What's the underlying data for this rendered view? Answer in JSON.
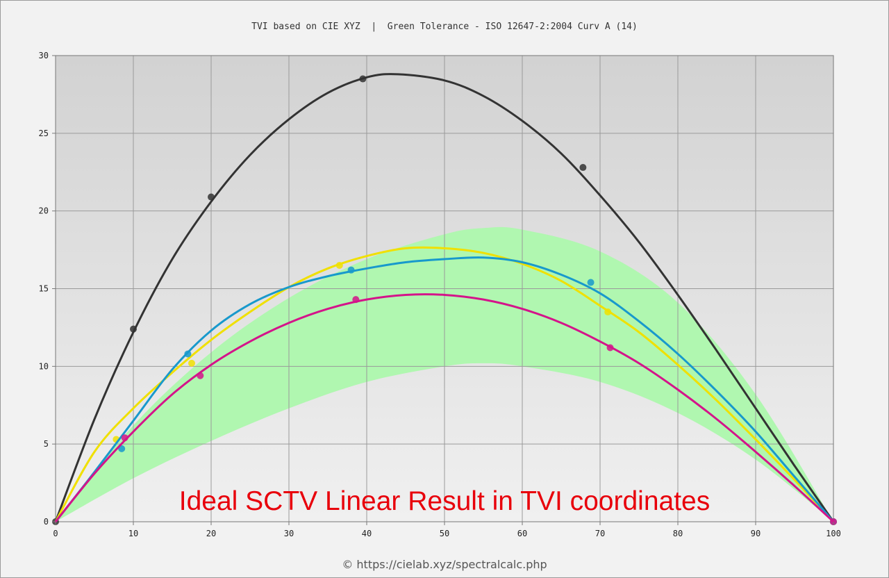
{
  "chart_data": {
    "type": "line",
    "title": "TVI based on CIE XYZ  |  Green Tolerance - ISO 12647-2:2004 Curv A (14)",
    "xlim": [
      0,
      100
    ],
    "ylim": [
      0,
      30
    ],
    "x_ticks": [
      "0",
      "10",
      "20",
      "30",
      "40",
      "50",
      "60",
      "70",
      "80",
      "90",
      "100"
    ],
    "y_ticks": [
      "0",
      "5",
      "10",
      "15",
      "20",
      "25",
      "30"
    ],
    "grid": true,
    "tolerance_band": {
      "color": "#b0f7b0",
      "upper": [
        [
          0,
          0
        ],
        [
          10,
          6.2
        ],
        [
          20,
          10.9
        ],
        [
          30,
          14.4
        ],
        [
          40,
          16.9
        ],
        [
          50,
          18.5
        ],
        [
          55,
          18.9
        ],
        [
          60,
          18.8
        ],
        [
          70,
          17.4
        ],
        [
          80,
          14.1
        ],
        [
          90,
          8.2
        ],
        [
          100,
          0
        ]
      ],
      "lower": [
        [
          0,
          0
        ],
        [
          10,
          2.8
        ],
        [
          20,
          5.2
        ],
        [
          30,
          7.3
        ],
        [
          40,
          9.0
        ],
        [
          50,
          10.0
        ],
        [
          55,
          10.2
        ],
        [
          60,
          10.0
        ],
        [
          70,
          9.0
        ],
        [
          80,
          7.0
        ],
        [
          90,
          4.0
        ],
        [
          100,
          0
        ]
      ]
    },
    "series": [
      {
        "color": "#333333",
        "points": [
          [
            0,
            0
          ],
          [
            10,
            12.4
          ],
          [
            20,
            20.9
          ],
          [
            39.5,
            28.5
          ],
          [
            67.8,
            22.8
          ],
          [
            100,
            0
          ]
        ],
        "curve": [
          [
            0,
            0
          ],
          [
            5,
            6.6
          ],
          [
            10,
            12.2
          ],
          [
            15,
            16.9
          ],
          [
            20,
            20.6
          ],
          [
            25,
            23.6
          ],
          [
            30,
            25.9
          ],
          [
            35,
            27.6
          ],
          [
            40,
            28.6
          ],
          [
            44,
            28.8
          ],
          [
            50,
            28.4
          ],
          [
            55,
            27.4
          ],
          [
            60,
            25.8
          ],
          [
            65,
            23.7
          ],
          [
            70,
            21.0
          ],
          [
            75,
            18.0
          ],
          [
            80,
            14.6
          ],
          [
            85,
            11.0
          ],
          [
            90,
            7.3
          ],
          [
            95,
            3.6
          ],
          [
            100,
            0
          ]
        ]
      },
      {
        "color": "#f0e000",
        "points": [
          [
            7.8,
            5.3
          ],
          [
            17.5,
            10.2
          ],
          [
            36.5,
            16.5
          ],
          [
            71,
            13.5
          ],
          [
            100,
            0
          ]
        ],
        "curve": [
          [
            0,
            0
          ],
          [
            5,
            4.5
          ],
          [
            10,
            7.3
          ],
          [
            15,
            9.6
          ],
          [
            20,
            11.7
          ],
          [
            25,
            13.5
          ],
          [
            30,
            15.1
          ],
          [
            35,
            16.3
          ],
          [
            40,
            17.1
          ],
          [
            45,
            17.6
          ],
          [
            50,
            17.6
          ],
          [
            55,
            17.3
          ],
          [
            60,
            16.6
          ],
          [
            65,
            15.5
          ],
          [
            70,
            13.9
          ],
          [
            75,
            12.2
          ],
          [
            80,
            10.1
          ],
          [
            85,
            7.8
          ],
          [
            90,
            5.3
          ],
          [
            95,
            2.7
          ],
          [
            100,
            0
          ]
        ]
      },
      {
        "color": "#1899cc",
        "points": [
          [
            8.5,
            4.7
          ],
          [
            17,
            10.8
          ],
          [
            38,
            16.2
          ],
          [
            68.8,
            15.4
          ],
          [
            100,
            0
          ]
        ],
        "curve": [
          [
            0,
            0
          ],
          [
            5,
            3.2
          ],
          [
            10,
            6.5
          ],
          [
            15,
            9.8
          ],
          [
            20,
            12.3
          ],
          [
            25,
            14.0
          ],
          [
            30,
            15.1
          ],
          [
            35,
            15.8
          ],
          [
            40,
            16.3
          ],
          [
            45,
            16.7
          ],
          [
            50,
            16.9
          ],
          [
            55,
            17.0
          ],
          [
            60,
            16.7
          ],
          [
            65,
            15.9
          ],
          [
            70,
            14.7
          ],
          [
            75,
            12.9
          ],
          [
            80,
            10.8
          ],
          [
            85,
            8.4
          ],
          [
            90,
            5.8
          ],
          [
            95,
            2.9
          ],
          [
            100,
            0
          ]
        ]
      },
      {
        "color": "#d4148a",
        "points": [
          [
            8.9,
            5.4
          ],
          [
            18.6,
            9.4
          ],
          [
            38.6,
            14.3
          ],
          [
            71.3,
            11.2
          ],
          [
            100,
            0
          ]
        ],
        "curve": [
          [
            0,
            0
          ],
          [
            5,
            3.1
          ],
          [
            10,
            5.8
          ],
          [
            15,
            8.2
          ],
          [
            20,
            10.1
          ],
          [
            25,
            11.6
          ],
          [
            30,
            12.8
          ],
          [
            35,
            13.7
          ],
          [
            40,
            14.3
          ],
          [
            45,
            14.6
          ],
          [
            50,
            14.6
          ],
          [
            55,
            14.3
          ],
          [
            60,
            13.7
          ],
          [
            65,
            12.8
          ],
          [
            70,
            11.6
          ],
          [
            75,
            10.2
          ],
          [
            80,
            8.5
          ],
          [
            85,
            6.6
          ],
          [
            90,
            4.5
          ],
          [
            95,
            2.3
          ],
          [
            100,
            0
          ]
        ]
      }
    ]
  },
  "overlay_caption": "Ideal SCTV Linear Result in TVI coordinates",
  "copyright": "© https://cielab.xyz/spectralcalc.php"
}
